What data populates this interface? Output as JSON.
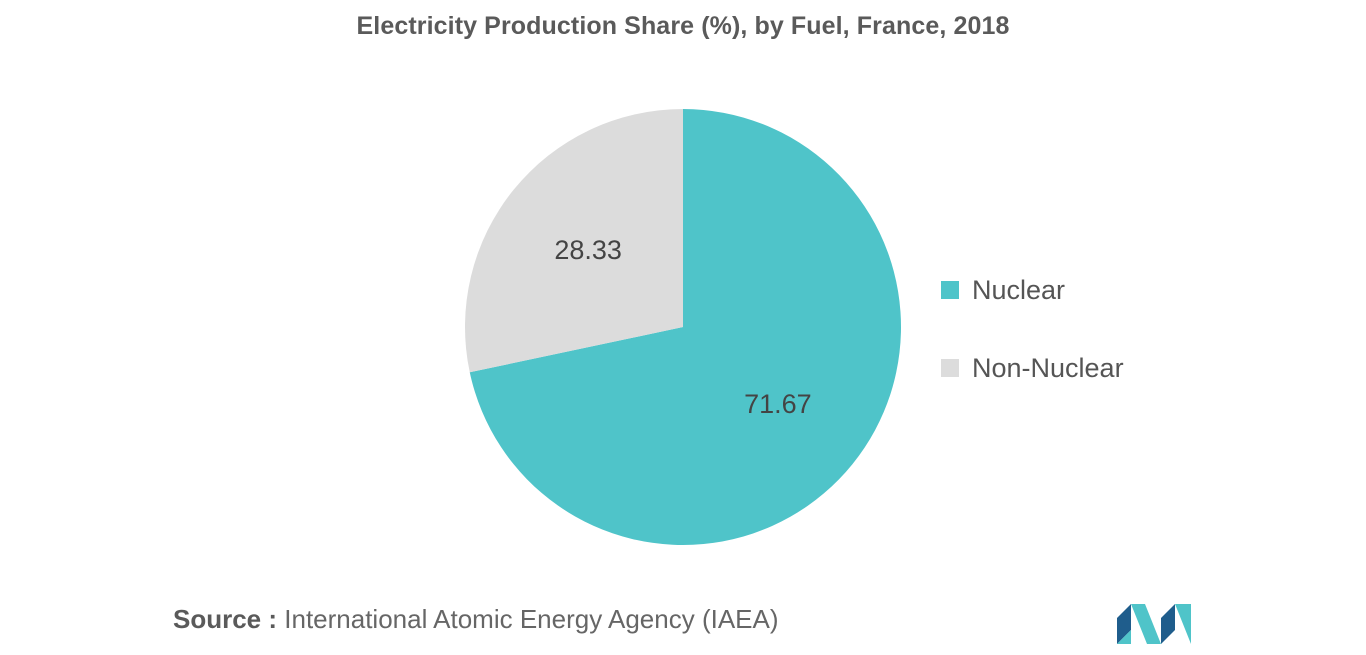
{
  "chart_data": {
    "type": "pie",
    "title": "Electricity Production Share (%), by Fuel, France, 2018",
    "slices": [
      {
        "label": "Nuclear",
        "value": 71.67,
        "display": "71.67",
        "color": "#4fc4c9"
      },
      {
        "label": "Non-Nuclear",
        "value": 28.33,
        "display": "28.33",
        "color": "#dcdcdc"
      }
    ],
    "legend_position": "right"
  },
  "source": {
    "prefix": "Source :",
    "text": "International Atomic Energy Agency (IAEA)"
  },
  "logo": {
    "icon": "mordor-intelligence-logo",
    "colors": [
      "#1f5d8c",
      "#4fc4c9"
    ]
  }
}
